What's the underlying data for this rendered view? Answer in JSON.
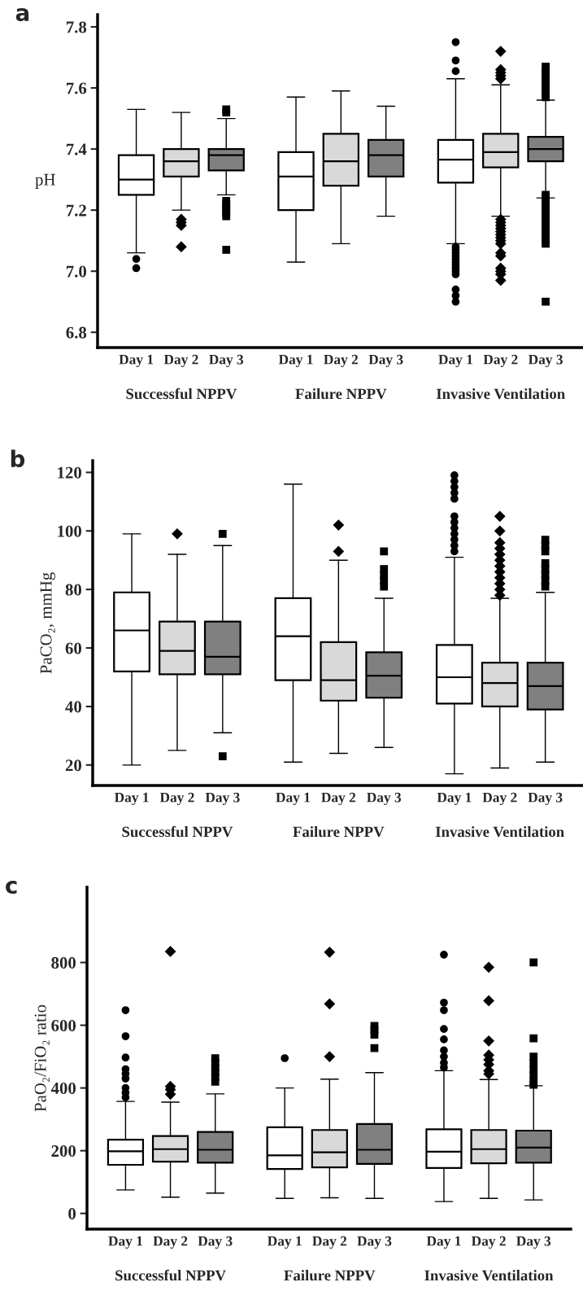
{
  "chart_data": [
    {
      "type": "box",
      "title": "a",
      "ylabel": "pH",
      "categories": [
        "Successful NPPV",
        "Failure NPPV",
        "Invasive Ventilation"
      ],
      "annotations": [
        "Day 1",
        "Day 2",
        "Day 3",
        "Day 1",
        "Day 2",
        "Day 3",
        "Day 1",
        "Day 2",
        "Day 3"
      ],
      "ylim": [
        6.75,
        7.84
      ],
      "yticks": [
        {
          "value": 6.8,
          "label": "6.8"
        },
        {
          "value": 7.0,
          "label": "7.0"
        },
        {
          "value": 7.2,
          "label": "7.2"
        },
        {
          "value": 7.4,
          "label": "7.4"
        },
        {
          "value": 7.6,
          "label": "7.6"
        },
        {
          "value": 7.8,
          "label": "7.8"
        }
      ],
      "grid": false,
      "legend": false,
      "series": [
        {
          "color": "#ffffff",
          "marker": "circle",
          "boxes": [
            {
              "low": 7.06,
              "q1": 7.25,
              "median": 7.3,
              "q3": 7.38,
              "high": 7.53,
              "outliers": [
                7.04,
                7.01
              ]
            },
            {
              "low": 7.03,
              "q1": 7.2,
              "median": 7.31,
              "q3": 7.39,
              "high": 7.57
            },
            {
              "low": 7.09,
              "q1": 7.29,
              "median": 7.365,
              "q3": 7.43,
              "high": 7.63,
              "outliers": [
                7.75,
                7.69,
                7.655,
                7.08,
                7.07,
                7.06,
                7.05,
                7.04,
                7.03,
                7.02,
                7.01,
                7.0,
                6.99,
                6.94,
                6.92,
                6.9
              ]
            }
          ]
        },
        {
          "color": "#d9d9d9",
          "marker": "diamond",
          "boxes": [
            {
              "low": 7.2,
              "q1": 7.31,
              "median": 7.36,
              "q3": 7.4,
              "high": 7.52,
              "outliers": [
                7.17,
                7.16,
                7.15,
                7.08
              ]
            },
            {
              "low": 7.09,
              "q1": 7.28,
              "median": 7.36,
              "q3": 7.45,
              "high": 7.59
            },
            {
              "low": 7.18,
              "q1": 7.34,
              "median": 7.39,
              "q3": 7.45,
              "high": 7.61,
              "outliers": [
                7.72,
                7.66,
                7.65,
                7.64,
                7.63,
                7.17,
                7.16,
                7.15,
                7.14,
                7.13,
                7.12,
                7.11,
                7.1,
                7.09,
                7.06,
                7.05,
                7.01,
                7.0,
                6.99,
                6.97
              ]
            }
          ]
        },
        {
          "color": "#808080",
          "marker": "square",
          "boxes": [
            {
              "low": 7.25,
              "q1": 7.33,
              "median": 7.38,
              "q3": 7.4,
              "high": 7.5,
              "outliers": [
                7.53,
                7.52,
                7.23,
                7.22,
                7.21,
                7.2,
                7.19,
                7.18,
                7.07
              ]
            },
            {
              "low": 7.18,
              "q1": 7.31,
              "median": 7.38,
              "q3": 7.43,
              "high": 7.54
            },
            {
              "low": 7.24,
              "q1": 7.36,
              "median": 7.4,
              "q3": 7.44,
              "high": 7.56,
              "outliers": [
                7.67,
                7.66,
                7.65,
                7.64,
                7.63,
                7.62,
                7.61,
                7.6,
                7.59,
                7.58,
                7.57,
                7.25,
                7.24,
                7.23,
                7.22,
                7.21,
                7.2,
                7.19,
                7.18,
                7.17,
                7.16,
                7.15,
                7.14,
                7.13,
                7.12,
                7.11,
                7.1,
                7.09,
                6.9
              ]
            }
          ]
        }
      ]
    },
    {
      "type": "box",
      "title": "b",
      "ylabel": "PaCO₂, mmHg",
      "categories": [
        "Successful NPPV",
        "Failure NPPV",
        "Invasive Ventilation"
      ],
      "annotations": [
        "Day 1",
        "Day 2",
        "Day 3",
        "Day 1",
        "Day 2",
        "Day 3",
        "Day 1",
        "Day 2",
        "Day 3"
      ],
      "ylim": [
        13,
        124
      ],
      "yticks": [
        20,
        40,
        60,
        80,
        100,
        120
      ],
      "grid": false,
      "legend": false,
      "series": [
        {
          "color": "#ffffff",
          "marker": "circle",
          "boxes": [
            {
              "low": 20,
              "q1": 52,
              "median": 66,
              "q3": 79,
              "high": 99
            },
            {
              "low": 21,
              "q1": 49,
              "median": 64,
              "q3": 77,
              "high": 116
            },
            {
              "low": 17,
              "q1": 41,
              "median": 50,
              "q3": 61,
              "high": 91,
              "outliers": [
                119,
                117,
                115,
                113,
                111,
                105,
                103,
                101,
                99,
                97,
                95,
                93
              ]
            }
          ]
        },
        {
          "color": "#d9d9d9",
          "marker": "diamond",
          "boxes": [
            {
              "low": 25,
              "q1": 51,
              "median": 59,
              "q3": 69,
              "high": 92,
              "outliers": [
                99
              ]
            },
            {
              "low": 24,
              "q1": 42,
              "median": 49,
              "q3": 62,
              "high": 90,
              "outliers": [
                102,
                93
              ]
            },
            {
              "low": 19,
              "q1": 40,
              "median": 48,
              "q3": 55,
              "high": 77,
              "outliers": [
                105,
                100,
                96,
                94,
                92,
                90,
                88,
                86,
                84,
                82,
                80,
                78
              ]
            }
          ]
        },
        {
          "color": "#808080",
          "marker": "square",
          "boxes": [
            {
              "low": 31,
              "q1": 51,
              "median": 57,
              "q3": 69,
              "high": 95,
              "outliers": [
                99,
                23
              ]
            },
            {
              "low": 26,
              "q1": 43,
              "median": 50.5,
              "q3": 58.5,
              "high": 77,
              "outliers": [
                93,
                87,
                85,
                83,
                81
              ]
            },
            {
              "low": 21,
              "q1": 39,
              "median": 47,
              "q3": 55,
              "high": 79,
              "outliers": [
                97,
                95,
                93,
                89,
                87,
                85,
                83,
                81
              ]
            }
          ]
        }
      ]
    },
    {
      "type": "box",
      "title": "c",
      "ylabel": "PaO₂/FiO₂ ratio",
      "categories": [
        "Successful NPPV",
        "Failure NPPV",
        "Invasive Ventilation"
      ],
      "annotations": [
        "Day 1",
        "Day 2",
        "Day 3",
        "Day 1",
        "Day 2",
        "Day 3",
        "Day 1",
        "Day 2",
        "Day 3"
      ],
      "ylim": [
        -50,
        1040
      ],
      "yticks": [
        0,
        200,
        400,
        600,
        800
      ],
      "grid": false,
      "legend": false,
      "series": [
        {
          "color": "#ffffff",
          "marker": "circle",
          "boxes": [
            {
              "low": 75,
              "q1": 155,
              "median": 198,
              "q3": 235,
              "high": 357,
              "outliers": [
                648,
                565,
                497,
                460,
                445,
                430,
                400,
                385,
                370
              ]
            },
            {
              "low": 48,
              "q1": 142,
              "median": 185,
              "q3": 275,
              "high": 400,
              "outliers": [
                495
              ]
            },
            {
              "low": 38,
              "q1": 145,
              "median": 197,
              "q3": 268,
              "high": 455,
              "outliers": [
                825,
                672,
                648,
                588,
                555,
                520,
                500,
                480,
                465
              ]
            }
          ]
        },
        {
          "color": "#d9d9d9",
          "marker": "diamond",
          "boxes": [
            {
              "low": 52,
              "q1": 165,
              "median": 205,
              "q3": 247,
              "high": 355,
              "outliers": [
                835,
                405,
                395,
                380
              ]
            },
            {
              "low": 50,
              "q1": 147,
              "median": 195,
              "q3": 266,
              "high": 428,
              "outliers": [
                833,
                668,
                500
              ]
            },
            {
              "low": 48,
              "q1": 160,
              "median": 205,
              "q3": 266,
              "high": 427,
              "outliers": [
                785,
                678,
                550,
                505,
                490,
                475,
                455,
                445
              ]
            }
          ]
        },
        {
          "color": "#808080",
          "marker": "square",
          "boxes": [
            {
              "low": 65,
              "q1": 162,
              "median": 203,
              "q3": 260,
              "high": 381,
              "outliers": [
                495,
                480,
                465,
                450,
                435,
                420
              ]
            },
            {
              "low": 48,
              "q1": 158,
              "median": 203,
              "q3": 285,
              "high": 449,
              "outliers": [
                598,
                585,
                570,
                527
              ]
            },
            {
              "low": 43,
              "q1": 162,
              "median": 210,
              "q3": 264,
              "high": 407,
              "outliers": [
                800,
                558,
                500,
                480,
                460,
                440,
                420,
                410
              ]
            }
          ]
        }
      ]
    }
  ]
}
